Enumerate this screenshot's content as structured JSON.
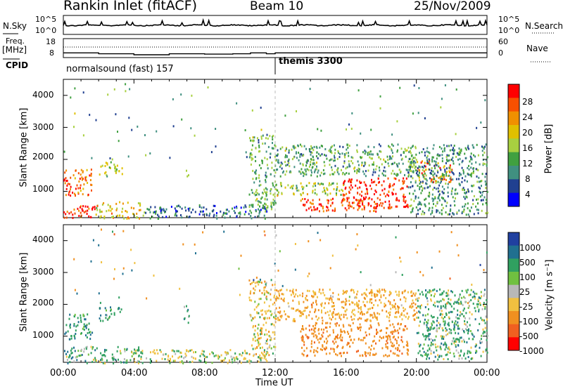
{
  "header": {
    "station": "Rankin Inlet (fitACF)",
    "beam": "Beam 10",
    "date": "25/Nov/2009"
  },
  "strip": {
    "nsky_label": "N.Sky",
    "nsky_ticks": [
      "10^5",
      "10^0"
    ],
    "nsearch_label": "N.Search",
    "nsearch_ticks": [
      "10^5",
      "10^0"
    ],
    "freq_label": "Freq.",
    "freq_unit": "[MHz]",
    "freq_ticks": [
      "18",
      "8"
    ],
    "nave_label": "Nave",
    "nave_ticks": [
      "60",
      "0"
    ],
    "cpid_label": "CPID",
    "cpid_modes": [
      {
        "name": "normalsound (fast) 157",
        "start_hour": 0,
        "end_hour": 12
      },
      {
        "name": "themis 3300",
        "start_hour": 12,
        "end_hour": 24
      }
    ]
  },
  "x_axis": {
    "title": "Time UT",
    "ticks": [
      "00:00",
      "04:00",
      "08:00",
      "12:00",
      "16:00",
      "20:00",
      "00:00"
    ]
  },
  "y_axis": {
    "title": "Slant Range [km]",
    "ticks": [
      "1000",
      "2000",
      "3000",
      "4000"
    ]
  },
  "power_scale": {
    "title": "Power [dB]",
    "labels": [
      "28",
      "24",
      "20",
      "16",
      "12",
      "8",
      "4"
    ],
    "colors": [
      "#ff0000",
      "#f85000",
      "#f09000",
      "#e0c000",
      "#a8d040",
      "#40a040",
      "#409080",
      "#204090",
      "#0000ff"
    ]
  },
  "velocity_scale": {
    "title": "Velocity [m s⁻¹]",
    "labels": [
      "1000",
      "500",
      "100",
      "25",
      "-25",
      "-100",
      "-500",
      "-1000"
    ],
    "colors": [
      "#2040a0",
      "#207090",
      "#30a060",
      "#70c040",
      "#b8b8b8",
      "#f0c040",
      "#f09020",
      "#f06020",
      "#ff0000"
    ]
  },
  "chart_data": [
    {
      "type": "line",
      "title": "N.Sky / N.Search",
      "x": [
        0,
        2,
        4,
        6,
        8,
        10,
        12,
        14,
        16,
        18,
        20,
        22,
        24
      ],
      "series": [
        {
          "name": "N.Sky",
          "values": [
            1200,
            800,
            1000,
            1100,
            1000,
            1000,
            1300,
            1000,
            900,
            1000,
            1000,
            1100,
            900
          ]
        }
      ],
      "xlim": [
        0,
        24
      ]
    },
    {
      "type": "line",
      "title": "Freq. / Nave",
      "x": [
        0,
        2,
        4,
        6,
        8,
        9.6,
        10.6,
        11.5,
        12,
        24
      ],
      "series": [
        {
          "name": "Freq.",
          "values": [
            10.5,
            10.0,
            9.5,
            10.0,
            9.8,
            10.0,
            10.5,
            10.0,
            10.5,
            10.5
          ]
        },
        {
          "name": "Nave",
          "values": [
            36,
            36,
            36,
            36,
            36,
            36,
            36,
            36,
            36,
            36
          ]
        }
      ],
      "ylim": [
        8,
        18
      ]
    },
    {
      "type": "heatmap",
      "title": "Power [dB]",
      "xlabel": "Time UT",
      "ylabel": "Slant Range [km]",
      "xlim": [
        0,
        24
      ],
      "ylim": [
        180,
        4500
      ],
      "clim": [
        0,
        32
      ],
      "regions": [
        {
          "t0": 0.0,
          "t1": 1.8,
          "r0": 180,
          "r1": 600,
          "value": 30
        },
        {
          "t0": 0.0,
          "t1": 1.6,
          "r0": 900,
          "r1": 1750,
          "value": 26
        },
        {
          "t0": 1.8,
          "t1": 4.6,
          "r0": 180,
          "r1": 700,
          "value": 20
        },
        {
          "t0": 2.0,
          "t1": 3.3,
          "r0": 1500,
          "r1": 1950,
          "value": 16
        },
        {
          "t0": 4.6,
          "t1": 11.5,
          "r0": 180,
          "r1": 600,
          "value": 8
        },
        {
          "t0": 6.8,
          "t1": 7.1,
          "r0": 1450,
          "r1": 2000,
          "value": 14
        },
        {
          "t0": 10.5,
          "t1": 12.0,
          "r0": 400,
          "r1": 2800,
          "value": 12
        },
        {
          "t0": 12.0,
          "t1": 20.0,
          "r0": 1500,
          "r1": 2500,
          "value": 12
        },
        {
          "t0": 12.0,
          "t1": 16.0,
          "r0": 900,
          "r1": 1300,
          "value": 16
        },
        {
          "t0": 13.4,
          "t1": 18.0,
          "r0": 400,
          "r1": 800,
          "value": 28
        },
        {
          "t0": 15.8,
          "t1": 19.5,
          "r0": 500,
          "r1": 1450,
          "value": 30
        },
        {
          "t0": 20.0,
          "t1": 22.0,
          "r0": 1300,
          "r1": 2000,
          "value": 24
        },
        {
          "t0": 19.5,
          "t1": 24.0,
          "r0": 300,
          "r1": 2500,
          "value": 10
        }
      ]
    },
    {
      "type": "heatmap",
      "title": "Velocity [m s⁻¹]",
      "xlabel": "Time UT",
      "ylabel": "Slant Range [km]",
      "xlim": [
        0,
        24
      ],
      "ylim": [
        180,
        4500
      ],
      "clim": [
        -1000,
        1000
      ],
      "regions": [
        {
          "t0": 0.0,
          "t1": 1.8,
          "r0": 180,
          "r1": 700,
          "value": 150
        },
        {
          "t0": 0.0,
          "t1": 1.6,
          "r0": 900,
          "r1": 1750,
          "value": 250
        },
        {
          "t0": 1.8,
          "t1": 4.6,
          "r0": 180,
          "r1": 700,
          "value": 80
        },
        {
          "t0": 2.0,
          "t1": 3.3,
          "r0": 1500,
          "r1": 1950,
          "value": 200
        },
        {
          "t0": 4.6,
          "t1": 11.5,
          "r0": 180,
          "r1": 600,
          "value": -40
        },
        {
          "t0": 6.8,
          "t1": 7.1,
          "r0": 1450,
          "r1": 2000,
          "value": 200
        },
        {
          "t0": 10.5,
          "t1": 12.0,
          "r0": 400,
          "r1": 2800,
          "value": -150
        },
        {
          "t0": 12.0,
          "t1": 20.0,
          "r0": 1500,
          "r1": 2500,
          "value": -300
        },
        {
          "t0": 13.4,
          "t1": 19.5,
          "r0": 400,
          "r1": 1450,
          "value": -600
        },
        {
          "t0": 20.0,
          "t1": 24.0,
          "r0": 300,
          "r1": 2500,
          "value": 120
        }
      ]
    }
  ]
}
